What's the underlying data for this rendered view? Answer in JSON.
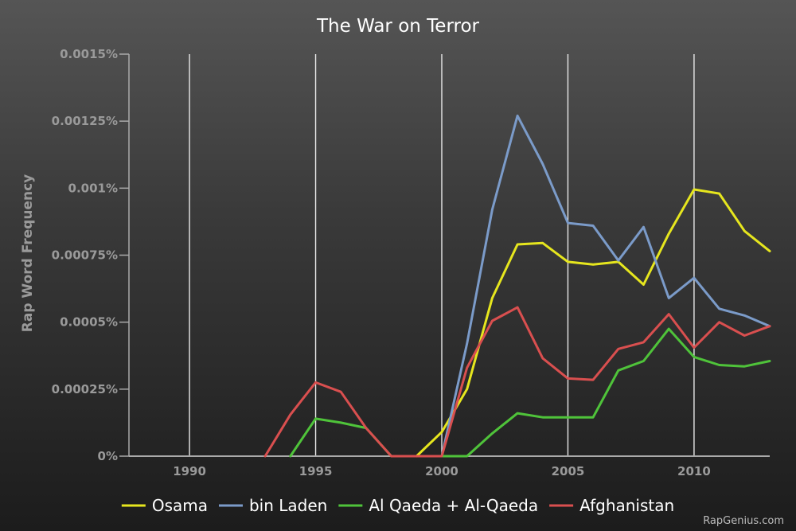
{
  "chart_data": {
    "type": "line",
    "title": "The War on Terror",
    "xlabel": "",
    "ylabel": "Rap Word Frequency",
    "xlim": [
      1987.6,
      2013
    ],
    "ylim": [
      0,
      0.0015
    ],
    "x_ticks": [
      {
        "value": 1990,
        "label": "1990"
      },
      {
        "value": 1995,
        "label": "1995"
      },
      {
        "value": 2000,
        "label": "2000"
      },
      {
        "value": 2005,
        "label": "2005"
      },
      {
        "value": 2010,
        "label": "2010"
      }
    ],
    "y_ticks": [
      {
        "value": 0,
        "label": "0%"
      },
      {
        "value": 0.00025,
        "label": "0.00025%"
      },
      {
        "value": 0.0005,
        "label": "0.0005%"
      },
      {
        "value": 0.00075,
        "label": "0.00075%"
      },
      {
        "value": 0.001,
        "label": "0.001%"
      },
      {
        "value": 0.00125,
        "label": "0.00125%"
      },
      {
        "value": 0.0015,
        "label": "0.0015%"
      }
    ],
    "grid": {
      "vertical": true,
      "horizontal": false
    },
    "legend_position": "bottom",
    "series": [
      {
        "name": "Osama",
        "color": "#e6e61e",
        "x": [
          1999,
          2000,
          2001,
          2002,
          2003,
          2004,
          2005,
          2006,
          2007,
          2008,
          2009,
          2010,
          2011,
          2012,
          2013
        ],
        "y": [
          0,
          9e-05,
          0.00025,
          0.00059,
          0.00079,
          0.000795,
          0.000725,
          0.000715,
          0.000725,
          0.00064,
          0.00083,
          0.000995,
          0.00098,
          0.00084,
          0.000765
        ]
      },
      {
        "name": "bin Laden",
        "color": "#7b9bc9",
        "x": [
          2000,
          2001,
          2002,
          2003,
          2004,
          2005,
          2006,
          2007,
          2008,
          2009,
          2010,
          2011,
          2012,
          2013
        ],
        "y": [
          0,
          0.00042,
          0.00092,
          0.00127,
          0.00109,
          0.00087,
          0.00086,
          0.00073,
          0.000855,
          0.00059,
          0.000665,
          0.00055,
          0.000525,
          0.000485
        ]
      },
      {
        "name": "Al Qaeda + Al-Qaeda",
        "color": "#4fc33a",
        "x": [
          1994,
          1995,
          1996,
          1997,
          1998,
          2001,
          2002,
          2003,
          2004,
          2005,
          2006,
          2007,
          2008,
          2009,
          2010,
          2011,
          2012,
          2013
        ],
        "y": [
          0,
          0.00014,
          0.000125,
          0.000105,
          0,
          0,
          8.5e-05,
          0.00016,
          0.000145,
          0.000145,
          0.000145,
          0.00032,
          0.000355,
          0.000475,
          0.00037,
          0.00034,
          0.000335,
          0.000355
        ]
      },
      {
        "name": "Afghanistan",
        "color": "#d94f4f",
        "x": [
          1993,
          1994,
          1995,
          1996,
          1997,
          1998,
          2000,
          2001,
          2002,
          2003,
          2004,
          2005,
          2006,
          2007,
          2008,
          2009,
          2010,
          2011,
          2012,
          2013
        ],
        "y": [
          0,
          0.000155,
          0.000275,
          0.00024,
          0.000105,
          0,
          0,
          0.00033,
          0.000505,
          0.000555,
          0.000365,
          0.00029,
          0.000285,
          0.0004,
          0.000425,
          0.00053,
          0.000405,
          0.0005,
          0.00045,
          0.000485
        ]
      }
    ]
  },
  "credit": "RapGenius.com"
}
